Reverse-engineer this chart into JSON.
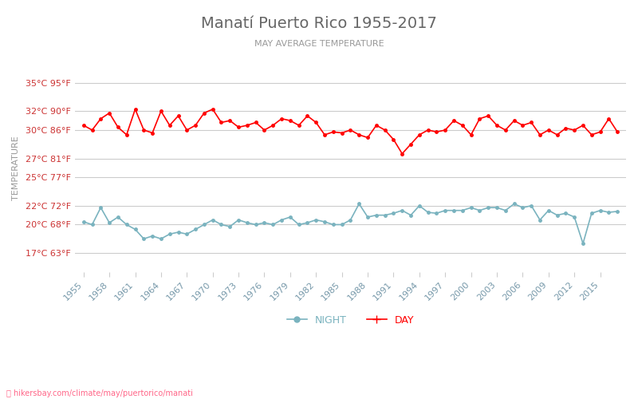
{
  "title": "Manatí Puerto Rico 1955-2017",
  "subtitle": "MAY AVERAGE TEMPERATURE",
  "ylabel": "TEMPERATURE",
  "watermark": "hikersbay.com/climate/may/puertorico/manati",
  "legend_night": "NIGHT",
  "legend_day": "DAY",
  "years": [
    1955,
    1956,
    1957,
    1958,
    1959,
    1960,
    1961,
    1962,
    1963,
    1964,
    1965,
    1966,
    1967,
    1968,
    1969,
    1970,
    1971,
    1972,
    1973,
    1974,
    1975,
    1976,
    1977,
    1978,
    1979,
    1980,
    1981,
    1982,
    1983,
    1984,
    1985,
    1986,
    1987,
    1988,
    1989,
    1990,
    1991,
    1992,
    1993,
    1994,
    1995,
    1996,
    1997,
    1998,
    1999,
    2000,
    2001,
    2002,
    2003,
    2004,
    2005,
    2006,
    2007,
    2008,
    2009,
    2010,
    2011,
    2012,
    2013,
    2014,
    2015,
    2016,
    2017
  ],
  "day_temps": [
    30.5,
    30.0,
    31.2,
    31.8,
    30.3,
    29.5,
    32.2,
    30.0,
    29.7,
    32.0,
    30.5,
    31.5,
    30.0,
    30.5,
    31.8,
    32.2,
    30.8,
    31.0,
    30.3,
    30.5,
    30.8,
    30.0,
    30.5,
    31.2,
    31.0,
    30.5,
    31.5,
    30.8,
    29.5,
    29.8,
    29.7,
    30.0,
    29.5,
    29.2,
    30.5,
    30.0,
    29.0,
    27.5,
    28.5,
    29.5,
    30.0,
    29.8,
    30.0,
    31.0,
    30.5,
    29.5,
    31.2,
    31.5,
    30.5,
    30.0,
    31.0,
    30.5,
    30.8,
    29.5,
    30.0,
    29.5,
    30.2,
    30.0,
    30.5,
    29.5,
    29.8,
    31.2,
    29.8
  ],
  "night_temps": [
    20.3,
    20.0,
    21.8,
    20.2,
    20.8,
    20.0,
    19.5,
    18.5,
    18.8,
    18.5,
    19.0,
    19.2,
    19.0,
    19.5,
    20.0,
    20.5,
    20.0,
    19.8,
    20.5,
    20.2,
    20.0,
    20.2,
    20.0,
    20.5,
    20.8,
    20.0,
    20.2,
    20.5,
    20.3,
    20.0,
    20.0,
    20.5,
    22.2,
    20.8,
    21.0,
    21.0,
    21.2,
    21.5,
    21.0,
    22.0,
    21.3,
    21.2,
    21.5,
    21.5,
    21.5,
    21.8,
    21.5,
    21.8,
    21.8,
    21.5,
    22.2,
    21.8,
    22.0,
    20.5,
    21.5,
    21.0,
    21.2,
    20.8,
    18.0,
    21.2,
    21.5,
    21.3,
    21.4
  ],
  "yticks_c": [
    17,
    20,
    22,
    25,
    27,
    30,
    32,
    35
  ],
  "yticks_f": [
    63,
    68,
    72,
    77,
    81,
    86,
    90,
    95
  ],
  "ymin": 15,
  "ymax": 37,
  "xtick_years": [
    1955,
    1958,
    1961,
    1964,
    1967,
    1970,
    1973,
    1976,
    1979,
    1982,
    1985,
    1988,
    1991,
    1994,
    1997,
    2000,
    2003,
    2006,
    2009,
    2012,
    2015
  ],
  "bg_color": "#ffffff",
  "day_color": "#ff0000",
  "night_color": "#7ab3bf",
  "grid_color": "#cccccc",
  "title_color": "#666666",
  "subtitle_color": "#999999",
  "ylabel_color": "#999999",
  "tick_label_color": "#cc3333",
  "xtick_color": "#7799aa",
  "watermark_color": "#ff6688"
}
